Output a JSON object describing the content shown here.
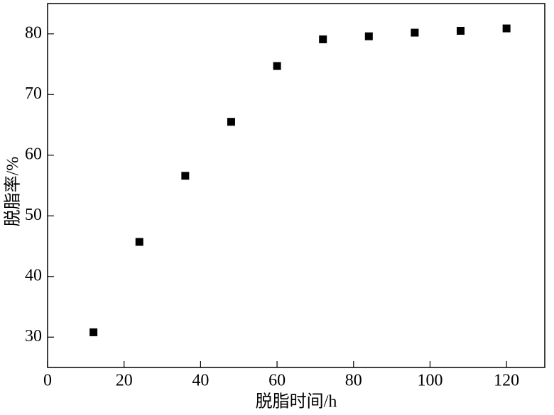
{
  "chart_data": {
    "type": "scatter",
    "x_label": "脱脂时间/h",
    "y_label": "脱脂率/%",
    "x": [
      12,
      24,
      36,
      48,
      60,
      72,
      84,
      96,
      108,
      120
    ],
    "values": [
      30.8,
      45.7,
      56.6,
      65.5,
      74.7,
      79.1,
      79.6,
      80.2,
      80.5,
      80.9
    ],
    "color": "#000000",
    "xlim": [
      0,
      130
    ],
    "xticks": [
      0,
      20,
      40,
      60,
      80,
      100,
      120
    ],
    "ylim": [
      25,
      85
    ],
    "yticks": [
      30,
      40,
      50,
      60,
      70,
      80
    ],
    "grid": false
  }
}
